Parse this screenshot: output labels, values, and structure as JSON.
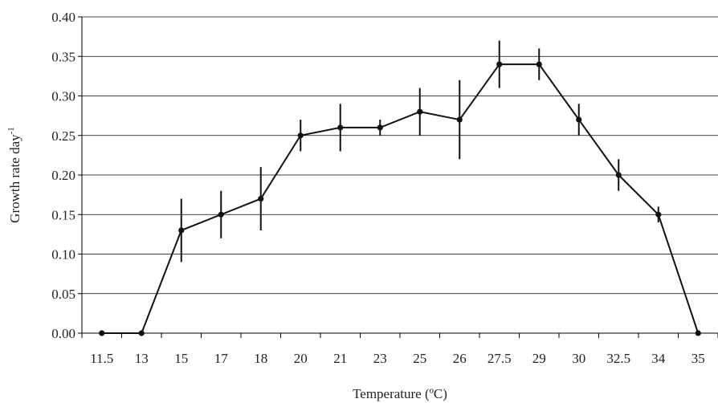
{
  "chart_data": {
    "type": "line",
    "xlabel": "Temperature (ºC)",
    "ylabel": "Growth rate day",
    "ylabel_superscript": "-1",
    "categories": [
      "11.5",
      "13",
      "15",
      "17",
      "18",
      "20",
      "21",
      "23",
      "25",
      "26",
      "27.5",
      "29",
      "30",
      "32.5",
      "34",
      "35"
    ],
    "series": [
      {
        "values": [
          0.0,
          0.0,
          0.13,
          0.15,
          0.17,
          0.25,
          0.26,
          0.26,
          0.28,
          0.27,
          0.34,
          0.34,
          0.27,
          0.2,
          0.15,
          0.0
        ],
        "error": [
          null,
          null,
          0.04,
          0.03,
          0.04,
          0.02,
          0.03,
          0.01,
          0.03,
          0.05,
          0.03,
          0.02,
          0.02,
          0.02,
          0.01,
          null
        ]
      }
    ],
    "ylim": [
      0,
      0.4
    ],
    "yticks": [
      "0.00",
      "0.05",
      "0.10",
      "0.15",
      "0.20",
      "0.25",
      "0.30",
      "0.35",
      "0.40"
    ],
    "grid": "horizontal",
    "legend": "none",
    "colors": {
      "line": "#111111",
      "grid": "#000000",
      "text": "#222222"
    }
  }
}
